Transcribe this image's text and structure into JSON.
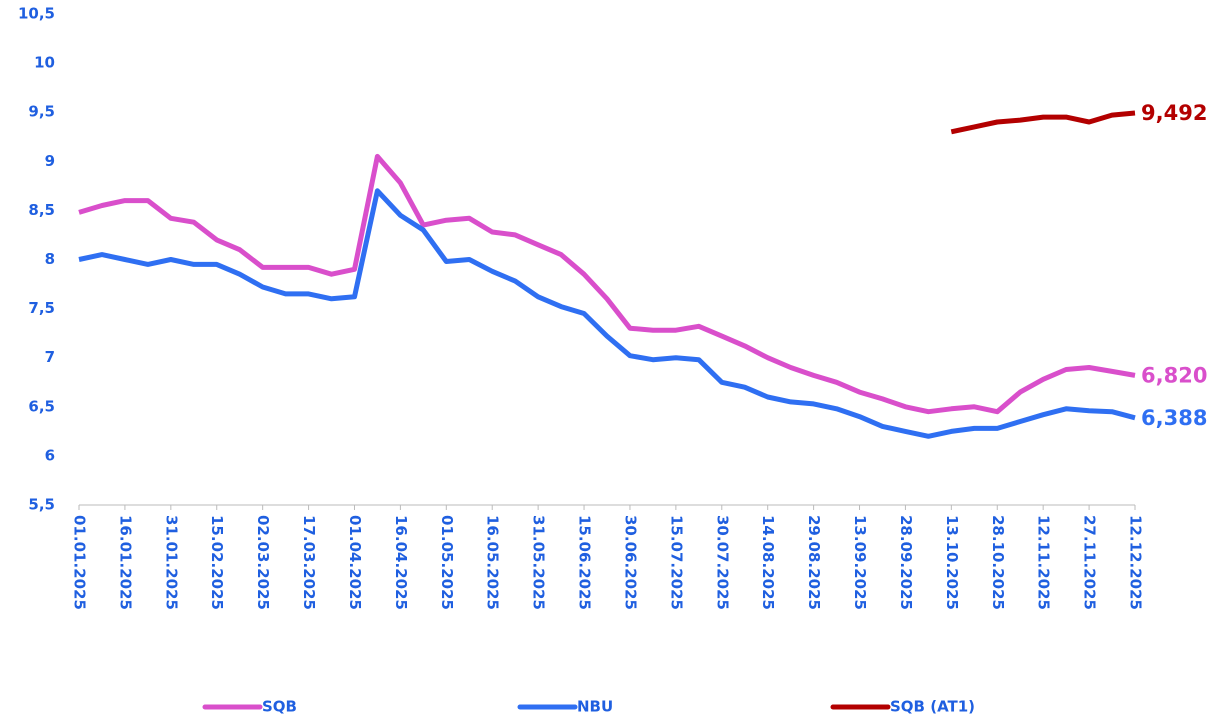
{
  "chart_data": {
    "type": "line",
    "categories": [
      "01.01.2025",
      null,
      "16.01.2025",
      null,
      "31.01.2025",
      null,
      "15.02.2025",
      null,
      "02.03.2025",
      null,
      "17.03.2025",
      null,
      "01.04.2025",
      null,
      "16.04.2025",
      null,
      "01.05.2025",
      null,
      "16.05.2025",
      null,
      "31.05.2025",
      null,
      "15.06.2025",
      null,
      "30.06.2025",
      null,
      "15.07.2025",
      null,
      "30.07.2025",
      null,
      "14.08.2025",
      null,
      "29.08.2025",
      null,
      "13.09.2025",
      null,
      "28.09.2025",
      null,
      "13.10.2025",
      null,
      "28.10.2025",
      null,
      "12.11.2025",
      null,
      "27.11.2025",
      null,
      "12.12.2025"
    ],
    "series": [
      {
        "name": "SQB",
        "color": "#d94fcb",
        "values": [
          8.48,
          8.55,
          8.6,
          8.6,
          8.42,
          8.38,
          8.2,
          8.1,
          7.92,
          7.92,
          7.92,
          7.85,
          7.9,
          9.05,
          8.78,
          8.35,
          8.4,
          8.42,
          8.28,
          8.25,
          8.15,
          8.05,
          7.85,
          7.6,
          7.3,
          7.28,
          7.28,
          7.32,
          7.22,
          7.12,
          7.0,
          6.9,
          6.82,
          6.75,
          6.65,
          6.58,
          6.5,
          6.45,
          6.48,
          6.5,
          6.45,
          6.65,
          6.78,
          6.88,
          6.9,
          6.86,
          6.82
        ],
        "value_labels": [
          null,
          null,
          null,
          null,
          null,
          null,
          null,
          null,
          null,
          null,
          null,
          null,
          null,
          null,
          null,
          null,
          null,
          null,
          null,
          null,
          null,
          null,
          null,
          null,
          null,
          null,
          null,
          null,
          null,
          null,
          null,
          null,
          null,
          null,
          null,
          null,
          null,
          null,
          null,
          null,
          null,
          null,
          null,
          null,
          null,
          null,
          "6,820"
        ]
      },
      {
        "name": "NBU",
        "color": "#2f6ff2",
        "values": [
          8.0,
          8.05,
          8.0,
          7.95,
          8.0,
          7.95,
          7.95,
          7.85,
          7.72,
          7.65,
          7.65,
          7.6,
          7.62,
          8.7,
          8.45,
          8.3,
          7.98,
          8.0,
          7.88,
          7.78,
          7.62,
          7.52,
          7.45,
          7.22,
          7.02,
          6.98,
          7.0,
          6.98,
          6.75,
          6.7,
          6.6,
          6.55,
          6.53,
          6.48,
          6.4,
          6.3,
          6.25,
          6.2,
          6.25,
          6.28,
          6.28,
          6.35,
          6.42,
          6.48,
          6.46,
          6.45,
          6.388
        ],
        "value_labels": [
          null,
          null,
          null,
          null,
          null,
          null,
          null,
          null,
          null,
          null,
          null,
          null,
          null,
          null,
          null,
          null,
          null,
          null,
          null,
          null,
          null,
          null,
          null,
          null,
          null,
          null,
          null,
          null,
          null,
          null,
          null,
          null,
          null,
          null,
          null,
          null,
          null,
          null,
          null,
          null,
          null,
          null,
          null,
          null,
          null,
          null,
          "6,388"
        ]
      },
      {
        "name": "SQB (AT1)",
        "color": "#b30000",
        "values": [
          null,
          null,
          null,
          null,
          null,
          null,
          null,
          null,
          null,
          null,
          null,
          null,
          null,
          null,
          null,
          null,
          null,
          null,
          null,
          null,
          null,
          null,
          null,
          null,
          null,
          null,
          null,
          null,
          null,
          null,
          null,
          null,
          null,
          null,
          null,
          null,
          null,
          null,
          9.3,
          9.35,
          9.4,
          9.42,
          9.45,
          9.45,
          9.4,
          9.47,
          9.492
        ],
        "value_labels": [
          null,
          null,
          null,
          null,
          null,
          null,
          null,
          null,
          null,
          null,
          null,
          null,
          null,
          null,
          null,
          null,
          null,
          null,
          null,
          null,
          null,
          null,
          null,
          null,
          null,
          null,
          null,
          null,
          null,
          null,
          null,
          null,
          null,
          null,
          null,
          null,
          null,
          null,
          null,
          null,
          null,
          null,
          null,
          null,
          null,
          null,
          "9,492"
        ]
      }
    ],
    "ylim": [
      5.5,
      10.5
    ],
    "yticks": [
      {
        "value": 5.5,
        "label": "5,5"
      },
      6,
      {
        "value": 6.5,
        "label": "6,5"
      },
      7,
      {
        "value": 7.5,
        "label": "7,5"
      },
      8,
      {
        "value": 8.5,
        "label": "8,5"
      },
      9,
      {
        "value": 9.5,
        "label": "9,5"
      },
      10,
      {
        "value": 10.5,
        "label": "10,5"
      }
    ],
    "grid": false,
    "legend": "bottom"
  }
}
